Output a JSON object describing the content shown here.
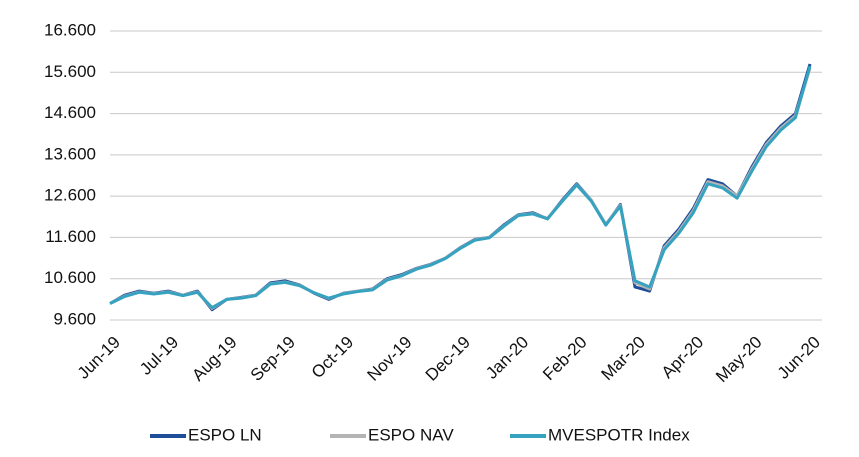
{
  "chart_data": {
    "type": "line",
    "categories": [
      "Jun-19",
      null,
      null,
      null,
      "Jul-19",
      null,
      null,
      null,
      "Aug-19",
      null,
      null,
      null,
      "Sep-19",
      null,
      null,
      null,
      "Oct-19",
      null,
      null,
      null,
      "Nov-19",
      null,
      null,
      null,
      "Dec-19",
      null,
      null,
      null,
      "Jan-20",
      null,
      null,
      null,
      "Feb-20",
      null,
      null,
      null,
      "Mar-20",
      null,
      null,
      null,
      "Apr-20",
      null,
      null,
      null,
      "May-20",
      null,
      null,
      null,
      "Jun-20"
    ],
    "series": [
      {
        "name": "ESPO LN",
        "color": "#1f4e99",
        "values": [
          10.0,
          10.2,
          10.3,
          10.25,
          10.3,
          10.2,
          10.3,
          9.85,
          10.1,
          10.15,
          10.2,
          10.5,
          10.55,
          10.45,
          10.25,
          10.1,
          10.25,
          10.3,
          10.35,
          10.6,
          10.7,
          10.85,
          10.95,
          11.1,
          11.35,
          11.55,
          11.6,
          11.9,
          12.15,
          12.2,
          12.05,
          12.5,
          12.9,
          12.5,
          11.9,
          12.4,
          10.4,
          10.3,
          11.4,
          11.8,
          12.3,
          13.0,
          12.9,
          12.6,
          13.3,
          13.9,
          14.3,
          14.6,
          15.8
        ]
      },
      {
        "name": "ESPO NAV",
        "color": "#b4b4b4",
        "values": [
          10.0,
          10.18,
          10.28,
          10.24,
          10.28,
          10.2,
          10.28,
          9.88,
          10.1,
          10.14,
          10.2,
          10.48,
          10.52,
          10.44,
          10.26,
          10.12,
          10.24,
          10.3,
          10.34,
          10.58,
          10.68,
          10.84,
          10.94,
          11.1,
          11.34,
          11.54,
          11.6,
          11.88,
          12.14,
          12.18,
          12.06,
          12.48,
          12.88,
          12.5,
          11.92,
          12.38,
          10.5,
          10.35,
          11.35,
          11.75,
          12.25,
          12.95,
          12.85,
          12.6,
          13.25,
          13.85,
          14.25,
          14.55,
          15.7
        ]
      },
      {
        "name": "MVESPOTR Index",
        "color": "#35a3c0",
        "values": [
          10.0,
          10.17,
          10.27,
          10.23,
          10.27,
          10.19,
          10.27,
          9.9,
          10.1,
          10.13,
          10.19,
          10.47,
          10.51,
          10.43,
          10.26,
          10.13,
          10.23,
          10.29,
          10.33,
          10.57,
          10.67,
          10.83,
          10.93,
          11.09,
          11.33,
          11.53,
          11.59,
          11.87,
          12.13,
          12.17,
          12.05,
          12.47,
          12.87,
          12.48,
          11.9,
          12.36,
          10.55,
          10.4,
          11.3,
          11.7,
          12.2,
          12.9,
          12.8,
          12.55,
          13.2,
          13.8,
          14.2,
          14.5,
          15.75
        ]
      }
    ],
    "ylim": [
      9.6,
      16.6
    ],
    "yticks": [
      {
        "value": 9.6,
        "label": "9.600"
      },
      {
        "value": 10.6,
        "label": "10.600"
      },
      {
        "value": 11.6,
        "label": "11.600"
      },
      {
        "value": 12.6,
        "label": "12.600"
      },
      {
        "value": 13.6,
        "label": "13.600"
      },
      {
        "value": 14.6,
        "label": "14.600"
      },
      {
        "value": 15.6,
        "label": "15.600"
      },
      {
        "value": 16.6,
        "label": "16.600"
      }
    ],
    "grid": true,
    "legend": "bottom"
  }
}
